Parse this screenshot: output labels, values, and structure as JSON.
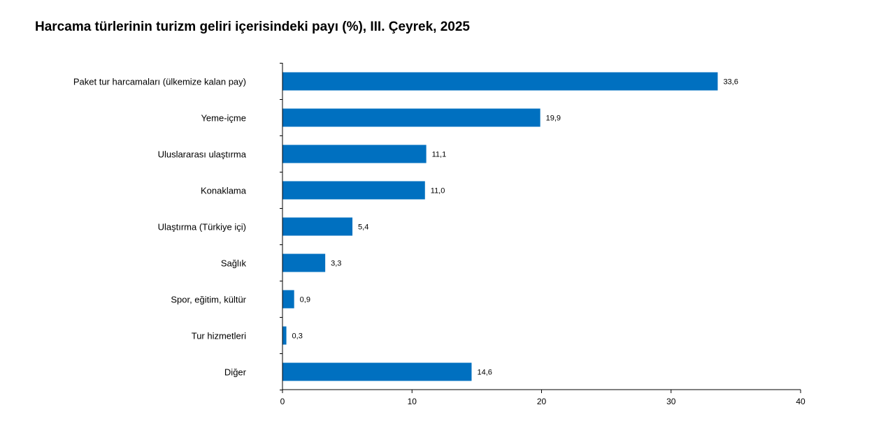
{
  "chart_data": {
    "type": "bar",
    "orientation": "horizontal",
    "title": "Harcama türlerinin turizm geliri içerisindeki payı (%), III. Çeyrek, 2025",
    "categories": [
      "Paket tur harcamaları (ülkemize kalan pay)",
      "Yeme-içme",
      "Uluslararası ulaştırma",
      "Konaklama",
      "Ulaştırma (Türkiye içi)",
      "Sağlık",
      "Spor, eğitim, kültür",
      "Tur hizmetleri",
      "Diğer"
    ],
    "values": [
      33.6,
      19.9,
      11.1,
      11.0,
      5.4,
      3.3,
      0.9,
      0.3,
      14.6
    ],
    "value_labels": [
      "33,6",
      "19,9",
      "11,1",
      "11,0",
      "5,4",
      "3,3",
      "0,9",
      "0,3",
      "14,6"
    ],
    "x_ticks": [
      0,
      10,
      20,
      30,
      40
    ],
    "xlim": [
      0,
      40
    ],
    "xlabel": "",
    "ylabel": "",
    "grid": false,
    "legend": "none",
    "bar_color": "#0070C0"
  }
}
